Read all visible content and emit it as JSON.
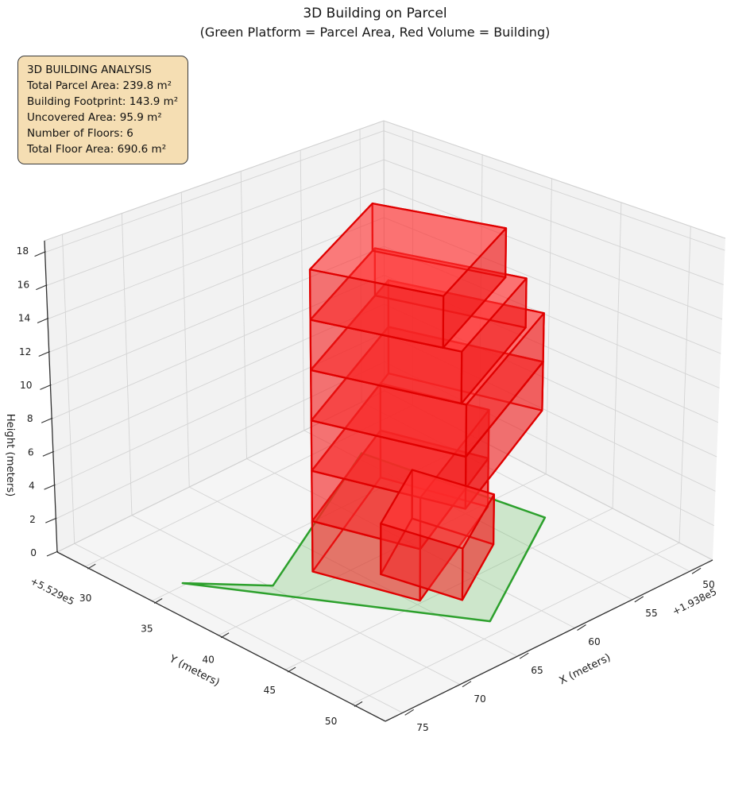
{
  "chart_data": {
    "type": "3d-building-plot",
    "title": "3D Building on Parcel",
    "subtitle": "(Green Platform = Parcel Area, Red Volume = Building)",
    "analysis_box": {
      "title": "3D BUILDING ANALYSIS",
      "lines": [
        "Total Parcel Area: 239.8 m²",
        "Building Footprint: 143.9 m²",
        "Uncovered Area: 95.9 m²",
        "Number of Floors: 6",
        "Total Floor Area: 690.6 m²"
      ],
      "bg_color": "#f5deb3",
      "border_color": "#3a3a3a"
    },
    "axes": {
      "x": {
        "label": "X (meters)",
        "ticks": [
          50,
          55,
          60,
          65,
          70,
          75
        ],
        "offset_text": "+1.938e5",
        "range": [
          48,
          76.5
        ]
      },
      "y": {
        "label": "Y (meters)",
        "ticks": [
          30,
          35,
          40,
          45,
          50
        ],
        "offset_text": "+5.529e5",
        "range": [
          27.9,
          52.5
        ]
      },
      "z": {
        "label": "Height (meters)",
        "ticks": [
          0,
          2,
          4,
          6,
          8,
          10,
          12,
          14,
          16,
          18
        ],
        "range": [
          0,
          18.7
        ]
      }
    },
    "parcel": {
      "label": "parcel-platform",
      "area_m2": 239.8,
      "z": 0,
      "polygon_xy": [
        [
          54.4,
          31.7
        ],
        [
          51.8,
          43.2
        ],
        [
          63.2,
          48.9
        ],
        [
          73.6,
          34.8
        ],
        [
          69.8,
          38.3
        ]
      ],
      "fill": "rgba(88,187,78,0.25)",
      "edge": "#2ca02c"
    },
    "building": {
      "label": "building-volume",
      "footprint_m2": 143.9,
      "num_floors": 6,
      "floor_height_m": 3,
      "total_floor_area_m2": 690.6,
      "uncovered_area_m2": 95.9,
      "edge": "#e00000",
      "blocks": [
        {
          "name": "floor-1",
          "z0": 0,
          "z1": 3,
          "footprint_xy": [
            [
              66.8,
              38.7
            ],
            [
              55.66,
              34.2
            ],
            [
              53.41,
              40.3
            ],
            [
              64.54,
              44.8
            ]
          ]
        },
        {
          "name": "floor-2",
          "z0": 3,
          "z1": 6,
          "footprint_xy": [
            [
              66.8,
              38.7
            ],
            [
              55.66,
              34.2
            ],
            [
              53.41,
              40.3
            ],
            [
              64.54,
              44.8
            ]
          ]
        },
        {
          "name": "floor-3",
          "z0": 6,
          "z1": 9,
          "footprint_xy": [
            [
              66.8,
              38.7
            ],
            [
              54.36,
              33.68
            ],
            [
              51.17,
              42.31
            ],
            [
              63.61,
              47.33
            ]
          ]
        },
        {
          "name": "floor-4",
          "z0": 9,
          "z1": 12,
          "footprint_xy": [
            [
              66.8,
              38.7
            ],
            [
              54.36,
              33.68
            ],
            [
              51.17,
              42.31
            ],
            [
              63.61,
              47.33
            ]
          ]
        },
        {
          "name": "floor-5",
          "z0": 12,
          "z1": 15,
          "footprint_xy": [
            [
              66.8,
              38.7
            ],
            [
              56.5,
              34.54
            ],
            [
              53.41,
              42.89
            ],
            [
              63.71,
              47.05
            ]
          ]
        },
        {
          "name": "floor-6",
          "z0": 15,
          "z1": 18,
          "footprint_xy": [
            [
              66.8,
              38.7
            ],
            [
              56.87,
              34.69
            ],
            [
              54.16,
              42.01
            ],
            [
              64.09,
              46.02
            ]
          ]
        },
        {
          "name": "ground-annex",
          "z0": 0,
          "z1": 3,
          "footprint_xy": [
            [
              64.0,
              41.4
            ],
            [
              57.8,
              38.4
            ],
            [
              56.4,
              43.3
            ],
            [
              62.6,
              46.3
            ]
          ]
        }
      ]
    },
    "view": {
      "comment": "screen positions of the 8 corners of the axes box (trilinear projection)",
      "xlim": [
        48,
        76.5
      ],
      "ylim": [
        27.9,
        52.5
      ],
      "zlim": [
        0,
        18.7
      ],
      "b000": [
        484,
        492
      ],
      "b100": [
        72,
        695
      ],
      "b010": [
        897,
        705
      ],
      "b110": [
        485,
        908
      ],
      "t001": [
        483,
        152
      ],
      "t101": [
        56,
        303
      ],
      "t011": [
        913,
        300
      ],
      "t111": [
        485,
        478
      ]
    },
    "style": {
      "pane_wall": "#f2f2f2",
      "pane_floor": "#f5f5f5",
      "grid": "#d4d4d4",
      "pane_edge": "#d0d0d0",
      "axis_line": "#2f2f2f",
      "tick_text": "#1c1c1c",
      "face_top": "rgba(255,48,48,0.45)",
      "face_ab": "rgba(255,48,48,0.30)",
      "face_bc": "rgba(255,48,48,0.38)",
      "face_cd": "rgba(235,22,22,0.50)",
      "face_da": "rgba(240,30,30,0.46)",
      "face_bottom": "rgba(255,48,48,0.22)"
    }
  }
}
